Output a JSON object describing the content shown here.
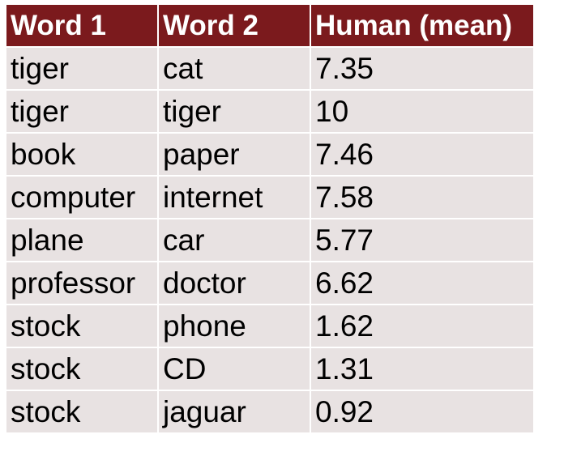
{
  "table": {
    "headers": [
      "Word 1",
      "Word 2",
      "Human (mean)"
    ],
    "rows": [
      [
        "tiger",
        "cat",
        "7.35"
      ],
      [
        "tiger",
        "tiger",
        "10"
      ],
      [
        "book",
        "paper",
        "7.46"
      ],
      [
        "computer",
        "internet",
        "7.58"
      ],
      [
        "plane",
        "car",
        "5.77"
      ],
      [
        "professor",
        "doctor",
        "6.62"
      ],
      [
        "stock",
        "phone",
        "1.62"
      ],
      [
        "stock",
        "CD",
        "1.31"
      ],
      [
        "stock",
        "jaguar",
        "0.92"
      ]
    ]
  },
  "colors": {
    "header_background": "#7b1a1d",
    "header_text": "#ffffff",
    "row_background": "#e8e2e2",
    "cell_text": "#000000",
    "grid_lines": "#ffffff"
  }
}
